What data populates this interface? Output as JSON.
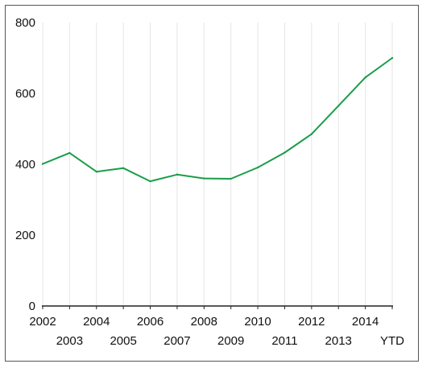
{
  "chart_data": {
    "type": "line",
    "title": "",
    "xlabel": "",
    "ylabel": "",
    "categories": [
      "2002",
      "2003",
      "2004",
      "2005",
      "2006",
      "2007",
      "2008",
      "2009",
      "2010",
      "2011",
      "2012",
      "2013",
      "2014",
      "YTD"
    ],
    "series": [
      {
        "values": [
          401,
          432,
          379,
          389,
          352,
          371,
          360,
          359,
          391,
          433,
          485,
          565,
          645,
          700
        ]
      }
    ],
    "ylim": [
      0,
      800
    ],
    "yticks": [
      0,
      200,
      400,
      600,
      800
    ],
    "vertical_gridlines": true,
    "horizontal_gridlines": false,
    "legend": "none",
    "colors": {
      "line": "#1a9e48",
      "gridline": "#e6e6e6",
      "axis": "#222222",
      "border": "#555555",
      "text": "#111111"
    }
  }
}
